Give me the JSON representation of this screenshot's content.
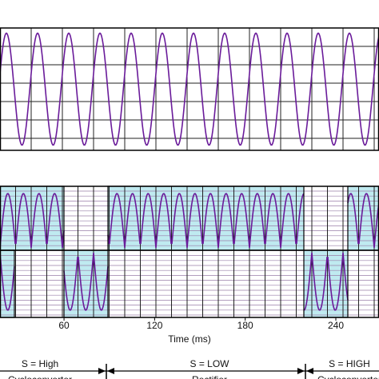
{
  "chart_data": {
    "type": "line",
    "xlabel": "Time (ms)",
    "xlim": [
      17.6,
      268.6
    ],
    "xticks": [
      60,
      120,
      180,
      240
    ],
    "modes": [
      {
        "label": "S = High",
        "sublabel": "Cycloconverter"
      },
      {
        "label": "S = LOW",
        "sublabel": "Rectifier"
      },
      {
        "label": "S = HIGH",
        "sublabel": "Cycloconverter"
      }
    ]
  }
}
